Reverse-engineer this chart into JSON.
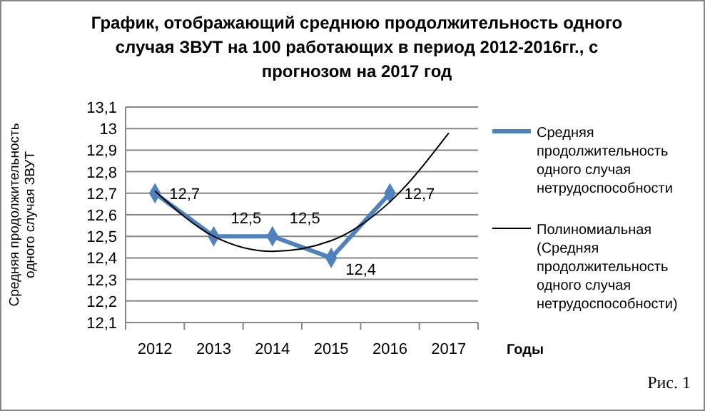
{
  "chart_data": {
    "type": "line",
    "title": "График, отображающий среднюю продолжительность одного случая ЗВУТ на 100 работающих в период 2012-2016гг., с прогнозом на 2017 год",
    "xlabel": "Годы",
    "ylabel": "Средняя продолжительность одного случая ЗВУТ",
    "categories": [
      "2012",
      "2013",
      "2014",
      "2015",
      "2016",
      "2017"
    ],
    "series": [
      {
        "name": "Средняя продолжительность одного случая нетрудоспособности",
        "color": "#4f81bd",
        "values": [
          12.7,
          12.5,
          12.5,
          12.4,
          12.7,
          null
        ],
        "value_labels": [
          "12,7",
          "12,5",
          "12,5",
          "12,4",
          "12,7",
          null
        ],
        "marker": "diamond"
      },
      {
        "name": "Полиномиальная (Средняя продолжительность одного случая нетрудоспособности)",
        "color": "#000000",
        "values": [
          12.71,
          12.5,
          12.43,
          12.48,
          12.66,
          12.98
        ],
        "marker": "none"
      }
    ],
    "ylim": [
      12.1,
      13.1
    ],
    "yticks": [
      {
        "value": 12.1,
        "label": "12,1"
      },
      {
        "value": 12.2,
        "label": "12,2"
      },
      {
        "value": 12.3,
        "label": "12,3"
      },
      {
        "value": 12.4,
        "label": "12,4"
      },
      {
        "value": 12.5,
        "label": "12,5"
      },
      {
        "value": 12.6,
        "label": "12,6"
      },
      {
        "value": 12.7,
        "label": "12,7"
      },
      {
        "value": 12.8,
        "label": "12,8"
      },
      {
        "value": 12.9,
        "label": "12,9"
      },
      {
        "value": 13,
        "label": "13"
      },
      {
        "value": 13.1,
        "label": "13,1"
      }
    ],
    "grid": "y",
    "legend": "right",
    "annotations": [
      "Рис. 1"
    ]
  }
}
